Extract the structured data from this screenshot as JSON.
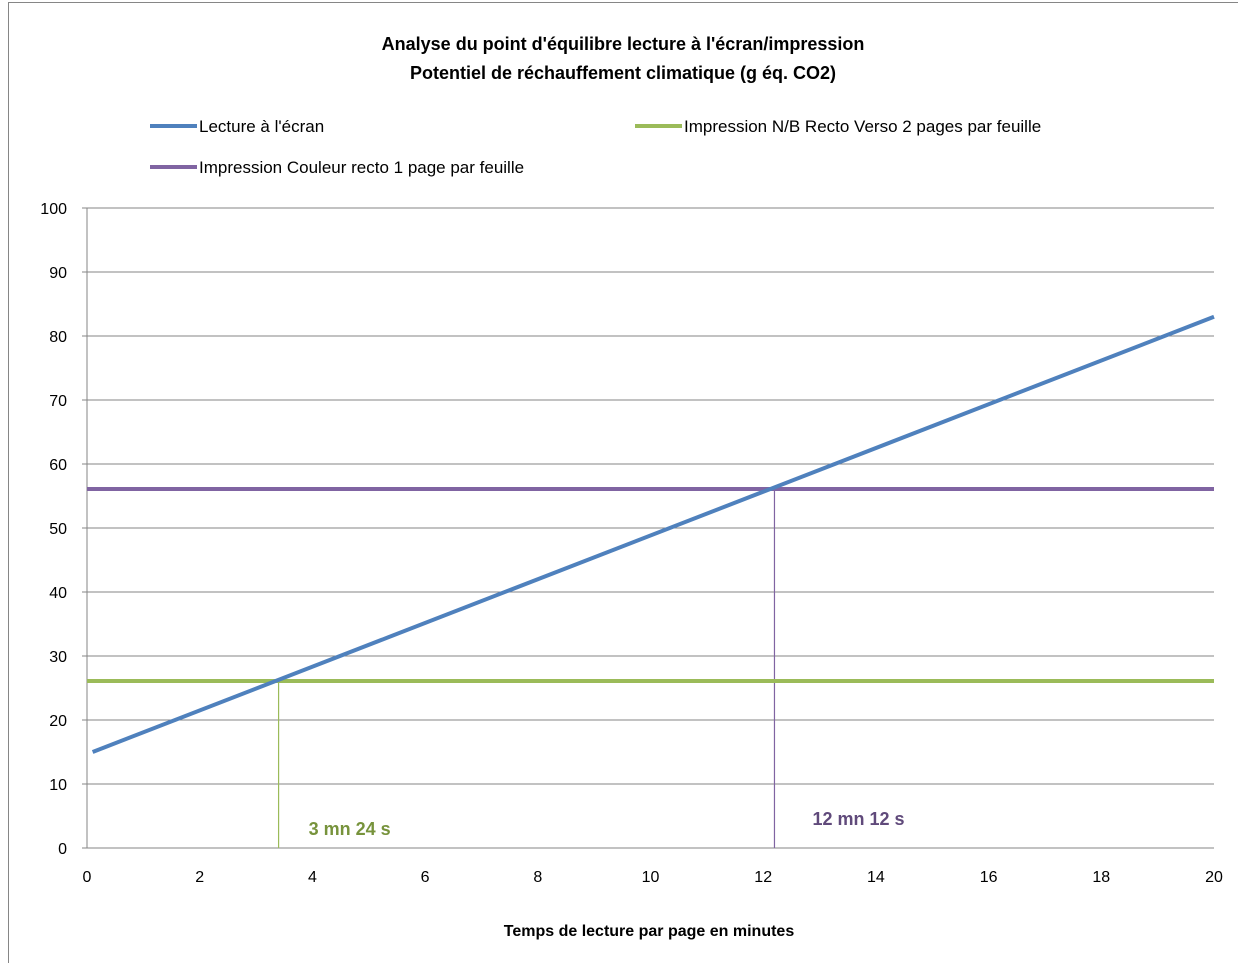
{
  "chart_data": {
    "type": "line",
    "title_line1": "Analyse du point d'équilibre lecture à l'écran/impression",
    "title_line2": "Potentiel de réchauffement climatique (g éq. CO2)",
    "xlabel": "Temps de lecture par page en minutes",
    "ylabel": "",
    "xlim": [
      0,
      20
    ],
    "ylim": [
      0,
      100
    ],
    "x_ticks": [
      0,
      2,
      4,
      6,
      8,
      10,
      12,
      14,
      16,
      18,
      20
    ],
    "y_ticks": [
      0,
      10,
      20,
      30,
      40,
      50,
      60,
      70,
      80,
      90,
      100
    ],
    "grid": "horizontal",
    "legend_position": "top",
    "series": [
      {
        "name": "Lecture à l'écran",
        "color": "#4F81BD",
        "x": [
          0.1,
          20
        ],
        "y": [
          15,
          83
        ]
      },
      {
        "name": "Impression N/B Recto Verso 2 pages par feuille",
        "color": "#9BBB59",
        "x": [
          0,
          20
        ],
        "y": [
          26.1,
          26.1
        ]
      },
      {
        "name": "Impression Couleur recto 1 page par feuille",
        "color": "#8064A2",
        "x": [
          0,
          20
        ],
        "y": [
          56.1,
          56.1
        ]
      }
    ],
    "annotations": [
      {
        "text": "3 mn 24 s",
        "x": 3.4,
        "y": 26.1,
        "color": "#77933C"
      },
      {
        "text": "12 mn 12 s",
        "x": 12.2,
        "y": 56.1,
        "color": "#604A7B"
      }
    ]
  }
}
